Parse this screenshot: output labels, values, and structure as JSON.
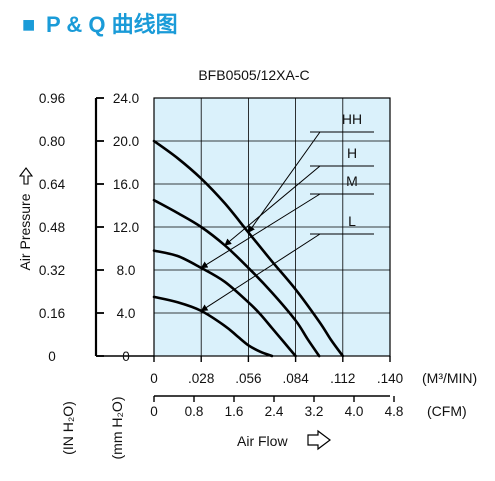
{
  "heading": {
    "square": "■",
    "text": "P & Q 曲线图"
  },
  "chart_data": {
    "type": "line",
    "title": "BFB0505/12XA-C",
    "xlabel": "Air Flow",
    "ylabel": "Air Pressure",
    "x_unit_primary": "(M³/MIN)",
    "x_unit_secondary": "(CFM)",
    "y_unit_primary": "(IN H₂O)",
    "y_unit_secondary": "(mm H₂O)",
    "x_ticks_primary": [
      "0",
      ".028",
      ".056",
      ".084",
      ".112",
      ".140"
    ],
    "x_ticks_secondary": [
      "0",
      "0.8",
      "1.6",
      "2.4",
      "3.2",
      "4.0",
      "4.8"
    ],
    "y_ticks_primary": [
      "0",
      "0.16",
      "0.32",
      "0.48",
      "0.64",
      "0.80",
      "0.96"
    ],
    "y_ticks_secondary": [
      "0",
      "4.0",
      "8.0",
      "12.0",
      "16.0",
      "20.0",
      "24.0"
    ],
    "xlim": [
      0,
      0.14
    ],
    "ylim": [
      0,
      24
    ],
    "grid": true,
    "series": [
      {
        "name": "HH",
        "x": [
          0,
          0.014,
          0.028,
          0.042,
          0.056,
          0.07,
          0.084,
          0.098,
          0.105,
          0.112
        ],
        "y": [
          20.0,
          18.4,
          16.5,
          14.2,
          11.5,
          8.8,
          6.2,
          3.2,
          1.5,
          0
        ]
      },
      {
        "name": "H",
        "x": [
          0,
          0.014,
          0.028,
          0.042,
          0.056,
          0.07,
          0.084,
          0.091,
          0.098
        ],
        "y": [
          14.5,
          13.3,
          12.0,
          10.3,
          8.2,
          5.9,
          3.3,
          1.6,
          0
        ]
      },
      {
        "name": "M",
        "x": [
          0,
          0.014,
          0.028,
          0.042,
          0.056,
          0.063,
          0.07,
          0.077,
          0.084
        ],
        "y": [
          9.8,
          9.3,
          8.2,
          6.9,
          5.0,
          3.9,
          2.6,
          1.3,
          0
        ]
      },
      {
        "name": "L",
        "x": [
          0,
          0.014,
          0.028,
          0.042,
          0.049,
          0.056,
          0.063,
          0.07
        ],
        "y": [
          5.5,
          5.0,
          4.2,
          2.8,
          1.9,
          1.0,
          0.4,
          0
        ]
      }
    ],
    "annotations": [
      {
        "series": "HH",
        "text": "HH",
        "point": [
          0.056,
          11.5
        ]
      },
      {
        "series": "H",
        "text": "H",
        "point": [
          0.042,
          10.3
        ]
      },
      {
        "series": "M",
        "text": "M",
        "point": [
          0.028,
          8.2
        ]
      },
      {
        "series": "L",
        "text": "L",
        "point": [
          0.028,
          4.2
        ]
      }
    ],
    "colors": {
      "background": "#daf1fb",
      "line": "#000000",
      "heading": "#1a9bd8"
    }
  }
}
